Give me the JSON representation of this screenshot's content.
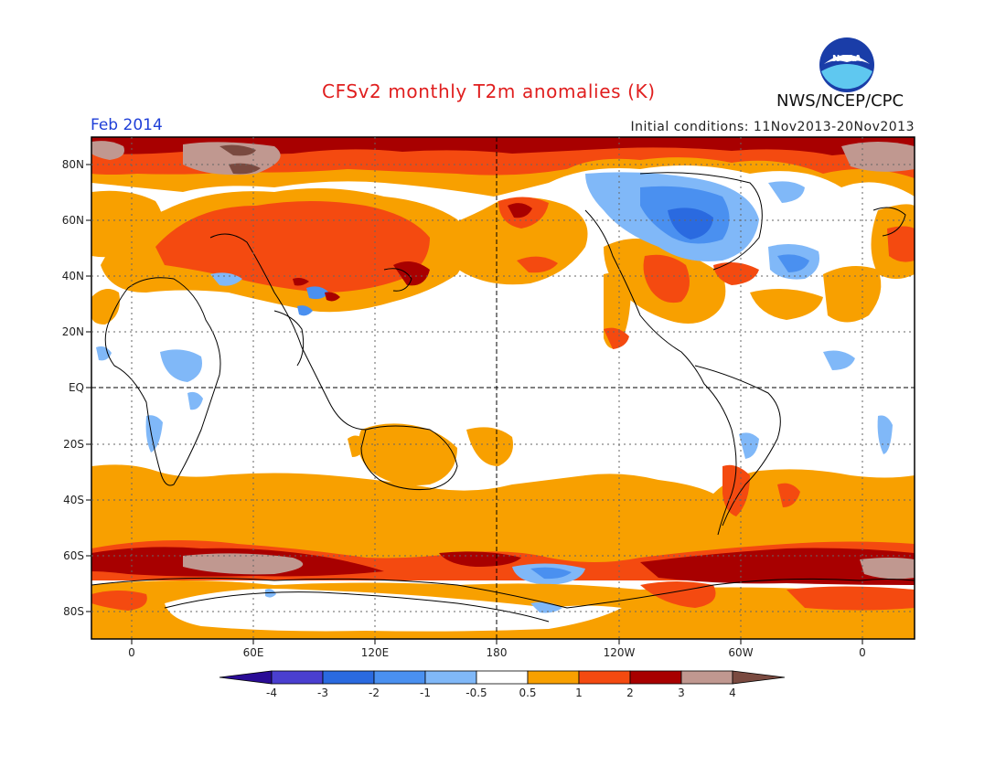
{
  "header": {
    "title": "CFSv2 monthly T2m anomalies (K)",
    "month": "Feb 2014",
    "initial_conditions": "Initial conditions: 11Nov2013-20Nov2013",
    "agency": "NWS/NCEP/CPC",
    "logo_text": "NOAA"
  },
  "map": {
    "lat_labels": [
      "80N",
      "60N",
      "40N",
      "20N",
      "EQ",
      "20S",
      "40S",
      "60S",
      "80S"
    ],
    "lon_labels": [
      "0",
      "60E",
      "120E",
      "180",
      "120W",
      "60W",
      "0"
    ]
  },
  "legend": {
    "tick_labels": [
      "-4",
      "-3",
      "-2",
      "-1",
      "-0.5",
      "0.5",
      "1",
      "2",
      "3",
      "4"
    ],
    "colors": [
      "#2a0c96",
      "#4a3fd0",
      "#2a6ae0",
      "#4a90f0",
      "#80b8f8",
      "#ffffff",
      "#f8a000",
      "#f44a10",
      "#a80000",
      "#c09890",
      "#7a4a40"
    ]
  },
  "colors": {
    "ocean_neutral": "#ffffff",
    "warm_0_5_1": "#f8a000",
    "warm_1_2": "#f44a10",
    "warm_2_3": "#a80000",
    "warm_3_4": "#c09890",
    "warm_gt4": "#7a4a40",
    "cool_0_5_1": "#80b8f8",
    "cool_1_2": "#4a90f0",
    "cool_2_3": "#2a6ae0"
  }
}
